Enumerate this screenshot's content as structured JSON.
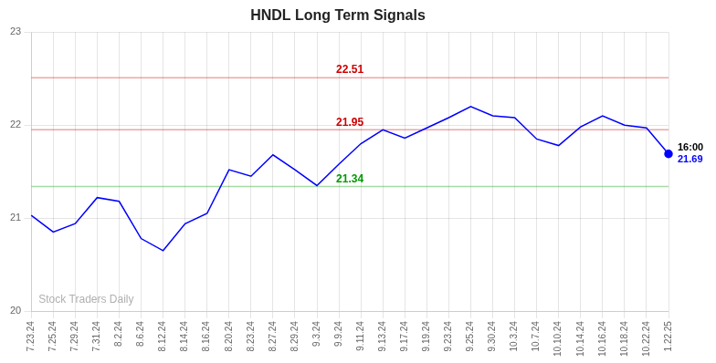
{
  "chart_data": {
    "type": "line",
    "title": "HNDL Long Term Signals",
    "categories": [
      "7.23.24",
      "7.25.24",
      "7.29.24",
      "7.31.24",
      "8.2.24",
      "8.6.24",
      "8.12.24",
      "8.14.24",
      "8.16.24",
      "8.20.24",
      "8.23.24",
      "8.27.24",
      "8.29.24",
      "9.3.24",
      "9.9.24",
      "9.11.24",
      "9.13.24",
      "9.17.24",
      "9.19.24",
      "9.23.24",
      "9.25.24",
      "9.30.24",
      "10.3.24",
      "10.7.24",
      "10.10.24",
      "10.14.24",
      "10.16.24",
      "10.18.24",
      "10.22.24",
      "1.22.25"
    ],
    "values": [
      21.03,
      20.85,
      20.94,
      21.22,
      21.18,
      20.78,
      20.65,
      20.94,
      21.05,
      21.52,
      21.45,
      21.68,
      21.52,
      21.35,
      21.58,
      21.8,
      21.95,
      21.86,
      21.97,
      22.08,
      22.2,
      22.1,
      22.08,
      21.85,
      21.78,
      21.98,
      22.1,
      22.0,
      21.97,
      21.69
    ],
    "color": "blue",
    "ylim": [
      20.0,
      23.0
    ],
    "yticks": [
      20,
      21,
      22,
      23
    ],
    "grid": true,
    "reference_lines": [
      {
        "value": 22.51,
        "color": "#cc0000"
      },
      {
        "value": 21.95,
        "color": "#cc0000"
      },
      {
        "value": 21.34,
        "color": "#009900"
      }
    ],
    "annotations": [
      {
        "text": "Stock Traders Daily",
        "color": "#b0b0b0"
      },
      {
        "text": "16:00",
        "color": "black"
      },
      {
        "text": "21.69",
        "color": "blue"
      }
    ]
  }
}
